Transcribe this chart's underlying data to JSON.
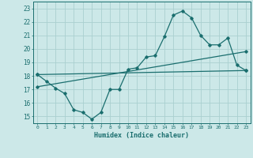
{
  "xlabel": "Humidex (Indice chaleur)",
  "bg_color": "#cce8e8",
  "grid_color": "#aad0d0",
  "line_color": "#1a6e6e",
  "xlim": [
    -0.5,
    23.5
  ],
  "ylim": [
    14.5,
    23.5
  ],
  "yticks": [
    15,
    16,
    17,
    18,
    19,
    20,
    21,
    22,
    23
  ],
  "xticks": [
    0,
    1,
    2,
    3,
    4,
    5,
    6,
    7,
    8,
    9,
    10,
    11,
    12,
    13,
    14,
    15,
    16,
    17,
    18,
    19,
    20,
    21,
    22,
    23
  ],
  "curve1_x": [
    0,
    1,
    2,
    3,
    4,
    5,
    6,
    7,
    8,
    9,
    10,
    11,
    12,
    13,
    14,
    15,
    16,
    17,
    18,
    19,
    20,
    21,
    22,
    23
  ],
  "curve1_y": [
    18.1,
    17.6,
    17.1,
    16.7,
    15.5,
    15.3,
    14.8,
    15.3,
    17.0,
    17.0,
    18.5,
    18.6,
    19.4,
    19.5,
    20.9,
    22.5,
    22.8,
    22.3,
    21.0,
    20.3,
    20.3,
    20.8,
    18.8,
    18.4
  ],
  "curve2_x": [
    0,
    23
  ],
  "curve2_y": [
    18.1,
    18.4
  ],
  "curve3_x": [
    0,
    23
  ],
  "curve3_y": [
    17.2,
    19.8
  ]
}
